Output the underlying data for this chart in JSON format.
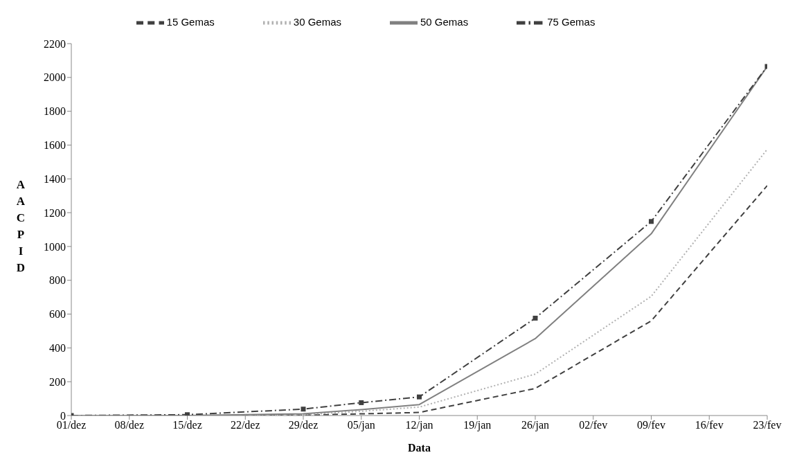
{
  "chart_data": {
    "type": "line",
    "xlabel": "Data",
    "ylabel": "AACPID",
    "categories": [
      "01/dez",
      "08/dez",
      "15/dez",
      "22/dez",
      "29/dez",
      "05/jan",
      "12/jan",
      "19/jan",
      "26/jan",
      "02/fev",
      "09/fev",
      "16/fev",
      "23/fev"
    ],
    "series": [
      {
        "name": "15 Gemas",
        "color": "#404040",
        "line_style": "dashed",
        "marker": "none",
        "x": [
          "01/dez",
          "15/dez",
          "29/dez",
          "05/jan",
          "12/jan",
          "26/jan",
          "09/fev",
          "23/fev"
        ],
        "values": [
          0,
          0,
          2,
          10,
          18,
          160,
          560,
          1360
        ]
      },
      {
        "name": "30 Gemas",
        "color": "#b0b0b0",
        "line_style": "dotted",
        "marker": "none",
        "x": [
          "01/dez",
          "15/dez",
          "29/dez",
          "05/jan",
          "12/jan",
          "26/jan",
          "09/fev",
          "23/fev"
        ],
        "values": [
          0,
          0,
          5,
          25,
          50,
          245,
          705,
          1575
        ]
      },
      {
        "name": "50 Gemas",
        "color": "#808080",
        "line_style": "solid",
        "marker": "none",
        "x": [
          "01/dez",
          "15/dez",
          "29/dez",
          "05/jan",
          "12/jan",
          "26/jan",
          "09/fev",
          "23/fev"
        ],
        "values": [
          0,
          0,
          10,
          35,
          65,
          455,
          1075,
          2065
        ]
      },
      {
        "name": "75 Gemas",
        "color": "#404040",
        "line_style": "dashdot",
        "marker": "square",
        "x": [
          "01/dez",
          "15/dez",
          "29/dez",
          "05/jan",
          "12/jan",
          "26/jan",
          "09/fev",
          "23/fev"
        ],
        "values": [
          0,
          5,
          38,
          76,
          110,
          576,
          1148,
          2065
        ]
      }
    ],
    "ylim": [
      0,
      2200
    ],
    "yticks": [
      0,
      200,
      400,
      600,
      800,
      1000,
      1200,
      1400,
      1600,
      1800,
      2000,
      2200
    ],
    "grid": false,
    "legend": "top"
  }
}
